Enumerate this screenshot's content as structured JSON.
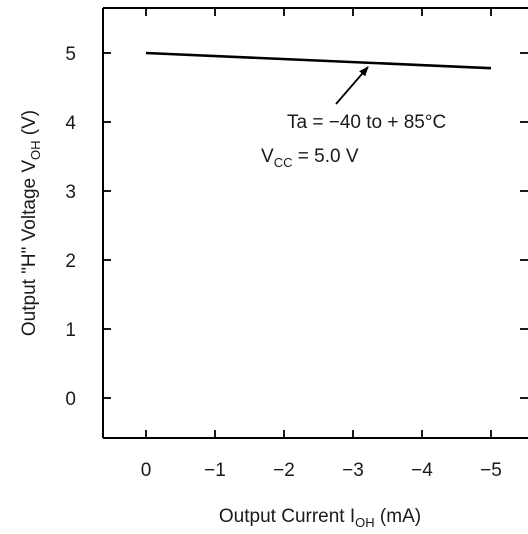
{
  "chart_data": {
    "type": "line",
    "title": "",
    "xlabel": "Output Current I",
    "xlabel_sub": "OH",
    "xlabel_unit": " (mA)",
    "ylabel": "Output \"H\" Voltage V",
    "ylabel_sub": "OH",
    "ylabel_unit": " (V)",
    "xlim": [
      0,
      -5
    ],
    "ylim": [
      0,
      5
    ],
    "x_ticks": [
      {
        "value": 0,
        "label": "0"
      },
      {
        "value": -1,
        "label": "−1"
      },
      {
        "value": -2,
        "label": "−2"
      },
      {
        "value": -3,
        "label": "−3"
      },
      {
        "value": -4,
        "label": "−4"
      },
      {
        "value": -5,
        "label": "−5"
      }
    ],
    "y_ticks": [
      {
        "value": 0,
        "label": "0"
      },
      {
        "value": 1,
        "label": "1"
      },
      {
        "value": 2,
        "label": "2"
      },
      {
        "value": 3,
        "label": "3"
      },
      {
        "value": 4,
        "label": "4"
      },
      {
        "value": 5,
        "label": "5"
      }
    ],
    "grid": false,
    "series": [
      {
        "x": [
          0,
          -5
        ],
        "y": [
          5.0,
          4.78
        ],
        "color": "#000000"
      }
    ],
    "annotations": {
      "ta": "Ta = −40 to + 85°C",
      "vcc_main": "V",
      "vcc_sub": "CC",
      "vcc_rest": " = 5.0 V"
    }
  }
}
